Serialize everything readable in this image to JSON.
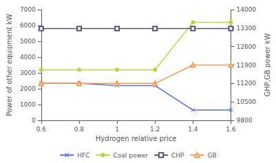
{
  "chart_data": {
    "type": "line",
    "x": [
      0.6,
      0.8,
      1.0,
      1.2,
      1.4,
      1.6
    ],
    "xlabel": "Hydrogen relative price",
    "ylabel": "Power of other equipment kW",
    "y2label": "GHP,GB power kW",
    "xlim": [
      0.6,
      1.6
    ],
    "xticks": [
      0.6,
      0.8,
      1,
      1.2,
      1.4,
      1.6
    ],
    "ylim": [
      0,
      7000
    ],
    "yticks": [
      0,
      1000,
      2000,
      3000,
      4000,
      5000,
      6000,
      7000
    ],
    "y2lim": [
      9800,
      14000
    ],
    "y2ticks": [
      9800,
      10500,
      11200,
      11900,
      12600,
      13300,
      14000
    ],
    "grid": false,
    "legend": "bottom",
    "series": [
      {
        "name": "HFC",
        "values": [
          2350,
          2350,
          2200,
          2200,
          650,
          650
        ],
        "marker": "x"
      },
      {
        "name": "Coal power",
        "values": [
          3200,
          3200,
          3200,
          3200,
          6200,
          6200
        ],
        "marker": "circle"
      },
      {
        "name": "CHP",
        "values": [
          5800,
          5800,
          5800,
          5800,
          5800,
          5800
        ],
        "marker": "square"
      },
      {
        "name": "GB",
        "values": [
          11200,
          11200,
          11200,
          11200,
          11900,
          11900
        ],
        "marker": "triangle",
        "axis": "y2"
      }
    ]
  }
}
